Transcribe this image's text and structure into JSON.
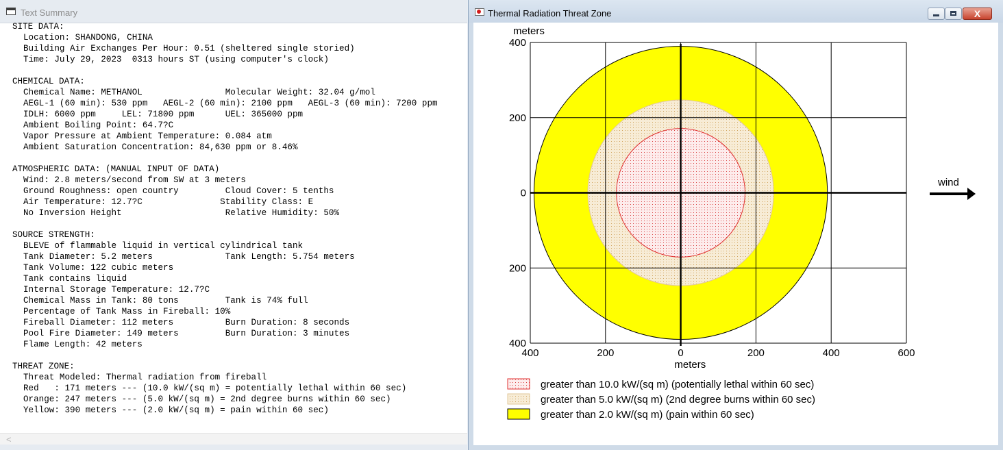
{
  "left_window": {
    "title": "Text Summary",
    "scroll_left_arrow": "<",
    "lines": [
      {
        "t": "SITE DATA:",
        "i": false
      },
      {
        "t": "Location: SHANDONG, CHINA",
        "i": true
      },
      {
        "t": "Building Air Exchanges Per Hour: 0.51 (sheltered single storied)",
        "i": true
      },
      {
        "t": "Time: July 29, 2023  0313 hours ST (using computer's clock)",
        "i": true
      },
      {
        "t": "",
        "i": false
      },
      {
        "t": "CHEMICAL DATA:",
        "i": false
      },
      {
        "t": "Chemical Name: METHANOL                Molecular Weight: 32.04 g/mol",
        "i": true
      },
      {
        "t": "AEGL-1 (60 min): 530 ppm   AEGL-2 (60 min): 2100 ppm   AEGL-3 (60 min): 7200 ppm",
        "i": true
      },
      {
        "t": "IDLH: 6000 ppm     LEL: 71800 ppm      UEL: 365000 ppm",
        "i": true
      },
      {
        "t": "Ambient Boiling Point: 64.7?C",
        "i": true
      },
      {
        "t": "Vapor Pressure at Ambient Temperature: 0.084 atm",
        "i": true
      },
      {
        "t": "Ambient Saturation Concentration: 84,630 ppm or 8.46%",
        "i": true
      },
      {
        "t": "",
        "i": false
      },
      {
        "t": "ATMOSPHERIC DATA: (MANUAL INPUT OF DATA)",
        "i": false
      },
      {
        "t": "Wind: 2.8 meters/second from SW at 3 meters",
        "i": true
      },
      {
        "t": "Ground Roughness: open country         Cloud Cover: 5 tenths",
        "i": true
      },
      {
        "t": "Air Temperature: 12.7?C               Stability Class: E",
        "i": true
      },
      {
        "t": "No Inversion Height                    Relative Humidity: 50%",
        "i": true
      },
      {
        "t": "",
        "i": false
      },
      {
        "t": "SOURCE STRENGTH:",
        "i": false
      },
      {
        "t": "BLEVE of flammable liquid in vertical cylindrical tank",
        "i": true
      },
      {
        "t": "Tank Diameter: 5.2 meters              Tank Length: 5.754 meters",
        "i": true
      },
      {
        "t": "Tank Volume: 122 cubic meters",
        "i": true
      },
      {
        "t": "Tank contains liquid",
        "i": true
      },
      {
        "t": "Internal Storage Temperature: 12.7?C",
        "i": true
      },
      {
        "t": "Chemical Mass in Tank: 80 tons         Tank is 74% full",
        "i": true
      },
      {
        "t": "Percentage of Tank Mass in Fireball: 10%",
        "i": true
      },
      {
        "t": "Fireball Diameter: 112 meters          Burn Duration: 8 seconds",
        "i": true
      },
      {
        "t": "Pool Fire Diameter: 149 meters         Burn Duration: 3 minutes",
        "i": true
      },
      {
        "t": "Flame Length: 42 meters",
        "i": true
      },
      {
        "t": "",
        "i": false
      },
      {
        "t": "THREAT ZONE:",
        "i": false
      },
      {
        "t": "Threat Modeled: Thermal radiation from fireball",
        "i": true
      },
      {
        "t": "Red   : 171 meters --- (10.0 kW/(sq m) = potentially lethal within 60 sec)",
        "i": true
      },
      {
        "t": "Orange: 247 meters --- (5.0 kW/(sq m) = 2nd degree burns within 60 sec)",
        "i": true
      },
      {
        "t": "Yellow: 390 meters --- (2.0 kW/(sq m) = pain within 60 sec)",
        "i": true
      }
    ]
  },
  "right_window": {
    "title": "Thermal Radiation Threat Zone",
    "close_glyph": "X",
    "wind_label": "wind"
  },
  "chart_data": {
    "type": "threat-zone",
    "xlabel": "meters",
    "ylabel": "meters",
    "xlim": [
      -400,
      600
    ],
    "ylim": [
      -400,
      400
    ],
    "x_ticks": [
      -400,
      -200,
      0,
      200,
      400,
      600
    ],
    "y_ticks": [
      400,
      200,
      0,
      -200,
      -400
    ],
    "x_tick_labels": [
      "400",
      "200",
      "0",
      "200",
      "400",
      "600"
    ],
    "y_tick_labels": [
      "400",
      "200",
      "0",
      "200",
      "400"
    ],
    "grid": true,
    "zones": [
      {
        "name": "yellow",
        "radius_m": 390,
        "fill": "#ffff00",
        "stroke": "#000000",
        "pattern": "solid"
      },
      {
        "name": "orange",
        "radius_m": 247,
        "fill": "#f7ecd6",
        "stroke": "#e2c79a",
        "pattern": "dots",
        "dot": "#d0a35c"
      },
      {
        "name": "red",
        "radius_m": 171,
        "fill": "#fdecec",
        "stroke": "#e03030",
        "pattern": "dots",
        "dot": "#d94040"
      }
    ],
    "legend": [
      {
        "label": "greater than 10.0 kW/(sq m) (potentially lethal within 60 sec)",
        "swatch": "red"
      },
      {
        "label": "greater than 5.0 kW/(sq m) (2nd degree burns within 60 sec)",
        "swatch": "orange"
      },
      {
        "label": "greater than 2.0 kW/(sq m) (pain within 60 sec)",
        "swatch": "yellow"
      }
    ],
    "legend_position": "bottom-left"
  }
}
